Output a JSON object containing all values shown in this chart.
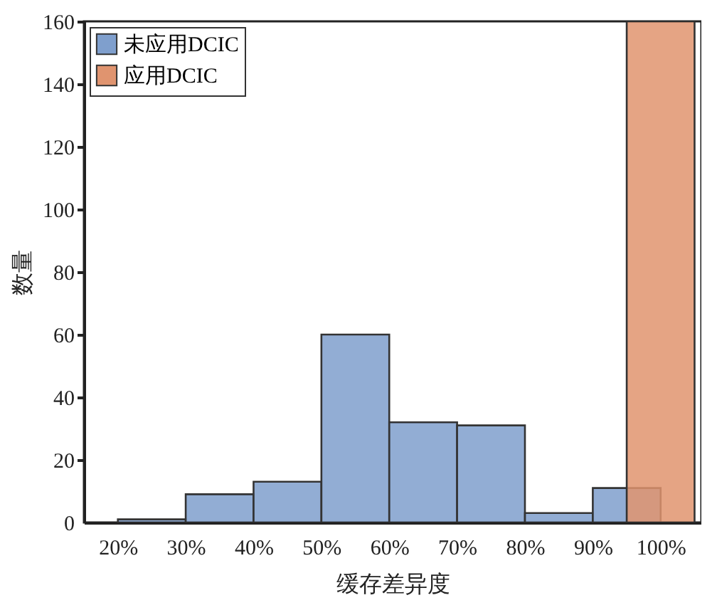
{
  "chart_data": {
    "type": "histogram",
    "xlabel": "缓存差异度",
    "ylabel": "数量",
    "bins": [
      20,
      30,
      40,
      50,
      60,
      70,
      80,
      90,
      100
    ],
    "series": [
      {
        "name": "未应用DCIC",
        "color": "#7f9fcd",
        "values": [
          1,
          9,
          13,
          60,
          32,
          31,
          3,
          11
        ]
      },
      {
        "name": "应用DCIC",
        "color": "#e0946f",
        "type": "bar",
        "x": [
          100
        ],
        "values": [
          160
        ]
      }
    ],
    "xlim": [
      15,
      106
    ],
    "ylim": [
      0,
      160
    ],
    "xticks": [
      {
        "value": 20,
        "label": "20%"
      },
      {
        "value": 30,
        "label": "30%"
      },
      {
        "value": 40,
        "label": "40%"
      },
      {
        "value": 50,
        "label": "50%"
      },
      {
        "value": 60,
        "label": "60%"
      },
      {
        "value": 70,
        "label": "70%"
      },
      {
        "value": 80,
        "label": "80%"
      },
      {
        "value": 90,
        "label": "90%"
      },
      {
        "value": 100,
        "label": "100%"
      }
    ],
    "yticks": [
      0,
      20,
      40,
      60,
      80,
      100,
      120,
      140,
      160
    ],
    "legend": "top left",
    "grid": false
  }
}
